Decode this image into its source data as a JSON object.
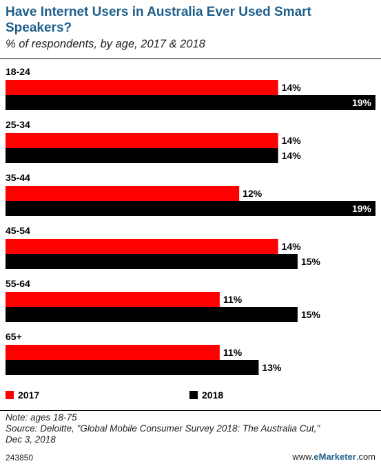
{
  "header": {
    "title": "Have Internet Users in Australia Ever Used Smart Speakers?",
    "subtitle": "% of respondents, by age, 2017 & 2018"
  },
  "chart_data": {
    "type": "bar",
    "orientation": "horizontal",
    "categories": [
      "18-24",
      "25-34",
      "35-44",
      "45-54",
      "55-64",
      "65+"
    ],
    "series": [
      {
        "name": "2017",
        "color": "#ff0000",
        "values": [
          14,
          14,
          12,
          14,
          11,
          11
        ]
      },
      {
        "name": "2018",
        "color": "#000000",
        "values": [
          19,
          14,
          19,
          15,
          15,
          13
        ]
      }
    ],
    "value_suffix": "%",
    "xlim": [
      0,
      19
    ],
    "grid": false,
    "legend": "bottom"
  },
  "legend": {
    "items": [
      "2017",
      "2018"
    ]
  },
  "footer": {
    "note": "Note: ages 18-75",
    "source_line1": "Source: Deloitte, \"Global Mobile Consumer Survey 2018: The Australia Cut,\"",
    "source_line2": "Dec 3, 2018",
    "chart_id": "243850",
    "brand_prefix": "www.",
    "brand_name": "eMarketer",
    "brand_suffix": ".com"
  }
}
